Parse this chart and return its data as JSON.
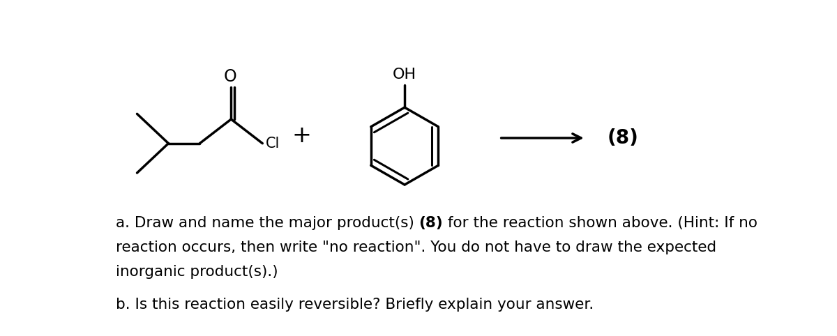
{
  "bg_color": "#ffffff",
  "label_8": "(8)",
  "plus_sign": "+",
  "label_OH": "OH",
  "label_O": "O",
  "label_Cl": "Cl",
  "figsize": [
    12.0,
    4.82
  ],
  "dpi": 100,
  "line_a1": "a. Draw and name the major product(s) ",
  "line_a2": "(8)",
  "line_a3": " for the reaction shown above. (Hint: If no",
  "line_a4": "reaction occurs, then write \"no reaction\". You do not have to draw the expected",
  "line_a5": "inorganic product(s).)",
  "line_b": "b. Is this reaction easily reversible? Briefly explain your answer.",
  "font_size_text": 15.5
}
